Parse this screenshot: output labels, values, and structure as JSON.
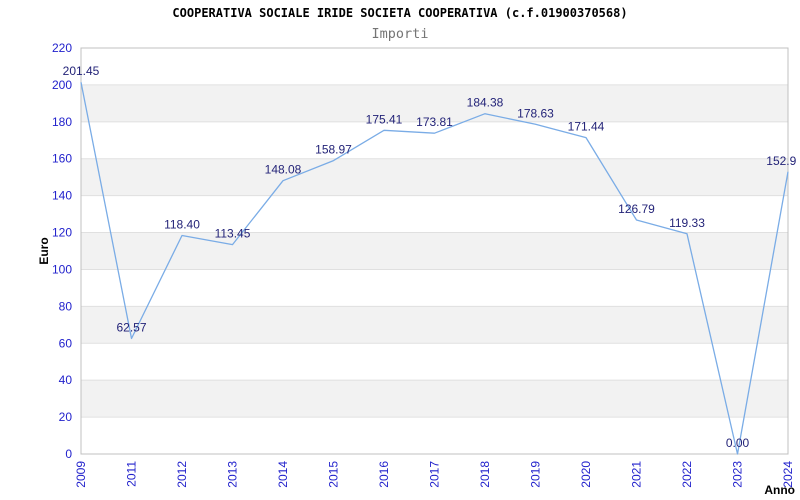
{
  "chart_data": {
    "type": "line",
    "title": "COOPERATIVA SOCIALE IRIDE SOCIETA COOPERATIVA (c.f.01900370568)",
    "subtitle": "Importi",
    "xlabel": "Anno",
    "ylabel": "Euro",
    "categories": [
      "2009",
      "2011",
      "2012",
      "2013",
      "2014",
      "2015",
      "2016",
      "2017",
      "2018",
      "2019",
      "2020",
      "2021",
      "2022",
      "2023",
      "2024"
    ],
    "values": [
      201.45,
      62.57,
      118.4,
      113.45,
      148.08,
      158.97,
      175.41,
      173.81,
      184.38,
      178.63,
      171.44,
      126.79,
      119.33,
      0.0,
      152.9
    ],
    "point_labels": [
      "201.45",
      "62.57",
      "118.40",
      "113.45",
      "148.08",
      "158.97",
      "175.41",
      "173.81",
      "184.38",
      "178.63",
      "171.44",
      "126.79",
      "119.33",
      "0.00",
      "152.9"
    ],
    "ylim": [
      0,
      220
    ],
    "ytick_step": 20,
    "grid": "horizontal-gridlines",
    "band_style": "alternating-gray-bands",
    "legend": "none",
    "colors": {
      "line": "#7aace6",
      "data_label": "#232378",
      "tick_label": "#2222cc",
      "band": "#f2f2f2",
      "grid": "#e0e0e0",
      "border": "#c0c0c0",
      "title": "#000000",
      "subtitle": "#757575",
      "axis_label": "#000000"
    }
  }
}
